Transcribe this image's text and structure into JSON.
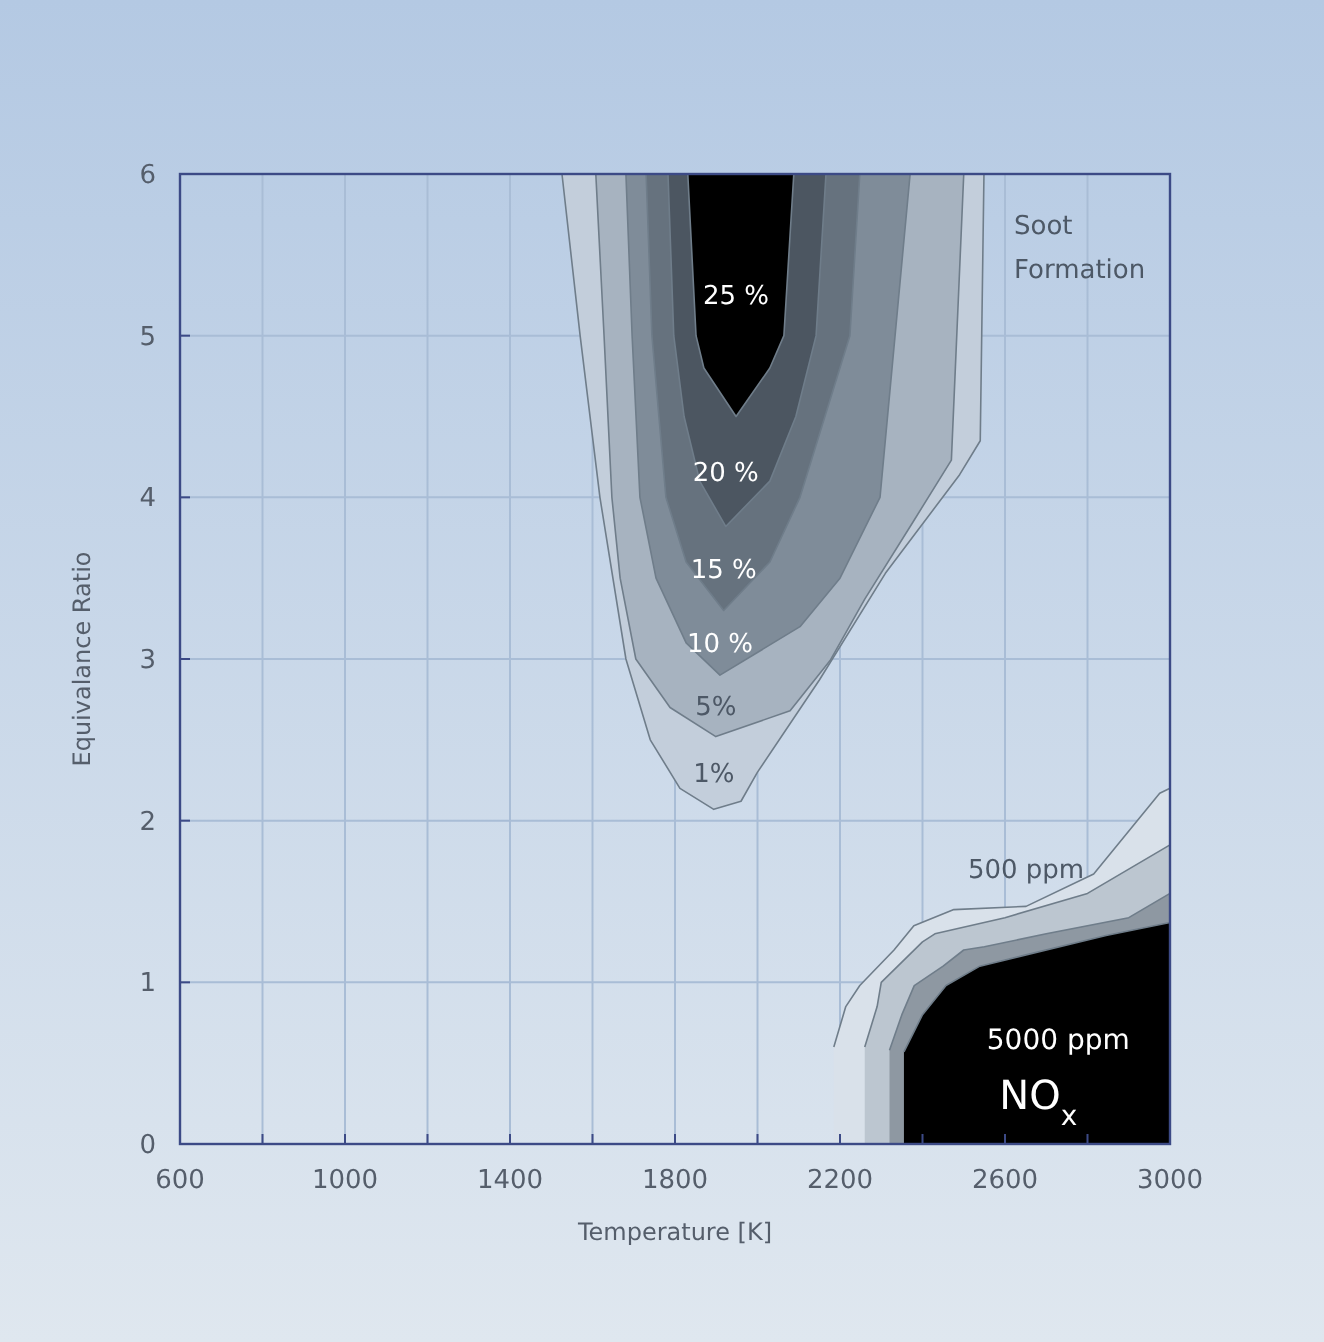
{
  "chart_data": {
    "type": "area",
    "xlabel": "Temperature [K]",
    "ylabel": "Equivalance Ratio",
    "xlim": [
      600,
      3000
    ],
    "ylim": [
      0,
      6
    ],
    "xticks": [
      600,
      {
        "value": 800,
        "label": null
      },
      1000,
      {
        "value": 1200,
        "label": null
      },
      1400,
      {
        "value": 1600,
        "label": null
      },
      1800,
      {
        "value": 2000,
        "label": null
      },
      2200,
      {
        "value": 2400,
        "label": null
      },
      2600,
      {
        "value": 2800,
        "label": null
      },
      3000
    ],
    "yticks": [
      0,
      1,
      2,
      3,
      4,
      5,
      6
    ],
    "grid": true,
    "series": [
      {
        "name": "1%",
        "color": "#c3cedb",
        "x": [
          1526,
          1570,
          1618,
          1681,
          1740,
          1812,
          1894,
          1960,
          2000,
          2150,
          2310,
          2490,
          2540,
          2549
        ],
        "values": [
          6,
          5,
          4,
          3,
          2.5,
          2.2,
          2.07,
          2.12,
          2.3,
          2.87,
          3.53,
          4.14,
          4.35,
          6
        ]
      },
      {
        "name": "5%",
        "color": "#a7b3c0",
        "x": [
          1608,
          1628,
          1647,
          1667,
          1705,
          1788,
          1899,
          2079,
          2176,
          2260,
          2380,
          2470,
          2500
        ],
        "values": [
          6,
          5,
          4,
          3.5,
          3,
          2.7,
          2.52,
          2.68,
          2.99,
          3.37,
          3.86,
          4.23,
          6
        ]
      },
      {
        "name": "10 %",
        "color": "#7f8c99",
        "x": [
          1681,
          1696,
          1715,
          1754,
          1827,
          1909,
          2103,
          2200,
          2297,
          2370
        ],
        "values": [
          6,
          5,
          4,
          3.5,
          3.1,
          2.9,
          3.2,
          3.5,
          4,
          6
        ]
      },
      {
        "name": "15 %",
        "color": "#66727e",
        "x": [
          1730,
          1744,
          1778,
          1827,
          1918,
          2030,
          2103,
          2224,
          2248
        ],
        "values": [
          6,
          5,
          4,
          3.6,
          3.3,
          3.6,
          4,
          5,
          6
        ]
      },
      {
        "name": "20 %",
        "color": "#4c5661",
        "x": [
          1783,
          1797,
          1822,
          1860,
          1923,
          2030,
          2093,
          2142,
          2166
        ],
        "values": [
          6,
          5,
          4.5,
          4.1,
          3.82,
          4.1,
          4.5,
          5,
          6
        ]
      },
      {
        "name": "25 %",
        "color": "#000000",
        "x": [
          1831,
          1851,
          1870,
          1948,
          2030,
          2064,
          2088
        ],
        "values": [
          6,
          5,
          4.8,
          4.5,
          4.8,
          5,
          6
        ]
      },
      {
        "name": "500 ppm",
        "color": "#d9e1ea",
        "x": [
          2185,
          2214,
          2248,
          2331,
          2379,
          2476,
          2651,
          2815,
          2975,
          3000
        ],
        "values": [
          0.6,
          0.85,
          0.98,
          1.2,
          1.35,
          1.45,
          1.47,
          1.67,
          2.17,
          2.2
        ]
      },
      {
        "color": "#bcc6d0",
        "x": [
          2260,
          2290,
          2300,
          2400,
          2430,
          2600,
          2800,
          3000
        ],
        "values": [
          0.6,
          0.85,
          1,
          1.25,
          1.3,
          1.4,
          1.55,
          1.85
        ]
      },
      {
        "color": "#8e98a2",
        "x": [
          2320,
          2350,
          2380,
          2450,
          2500,
          2550,
          2700,
          2900,
          3000
        ],
        "values": [
          0.58,
          0.8,
          0.98,
          1.1,
          1.2,
          1.22,
          1.3,
          1.4,
          1.55
        ]
      },
      {
        "name": "5000 ppm NO$_{x}$",
        "color": "#000000",
        "x": [
          2355,
          2400,
          2457,
          2539,
          2651,
          2845,
          3000
        ],
        "values": [
          0.57,
          0.8,
          0.98,
          1.1,
          1.17,
          1.29,
          1.37
        ]
      }
    ],
    "annotations": [
      "Soot Formation"
    ]
  }
}
